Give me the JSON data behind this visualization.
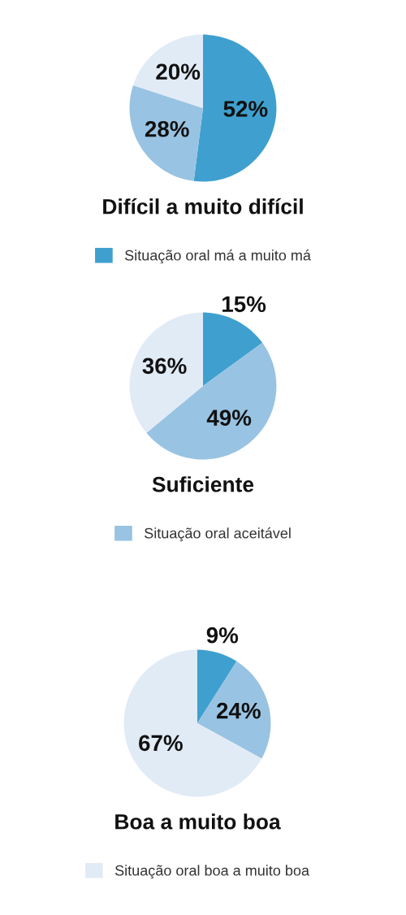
{
  "chart_data": [
    {
      "type": "pie",
      "title": "Difícil a muito difícil",
      "categories": [
        "Situação oral má a muito má",
        null,
        null
      ],
      "values": [
        52,
        28,
        20
      ],
      "value_labels": [
        "52%",
        "28%",
        "20%"
      ],
      "colors": [
        "#3fa0cf",
        "#99c3e2",
        "#e1ebf6"
      ],
      "legend": "bottom"
    },
    {
      "type": "pie",
      "title": "Suficiente",
      "categories": [
        null,
        "Situação oral aceitável",
        null
      ],
      "values": [
        15,
        49,
        36
      ],
      "value_labels": [
        "15%",
        "49%",
        "36%"
      ],
      "colors": [
        "#3fa0cf",
        "#99c3e2",
        "#e1ebf6"
      ],
      "legend": "bottom"
    },
    {
      "type": "pie",
      "title": "Boa a muito boa",
      "categories": [
        null,
        null,
        "Situação oral boa a muito boa"
      ],
      "values": [
        9,
        24,
        67
      ],
      "value_labels": [
        "9%",
        "24%",
        "67%"
      ],
      "colors": [
        "#3fa0cf",
        "#99c3e2",
        "#e1ebf6"
      ],
      "legend": "bottom"
    }
  ]
}
